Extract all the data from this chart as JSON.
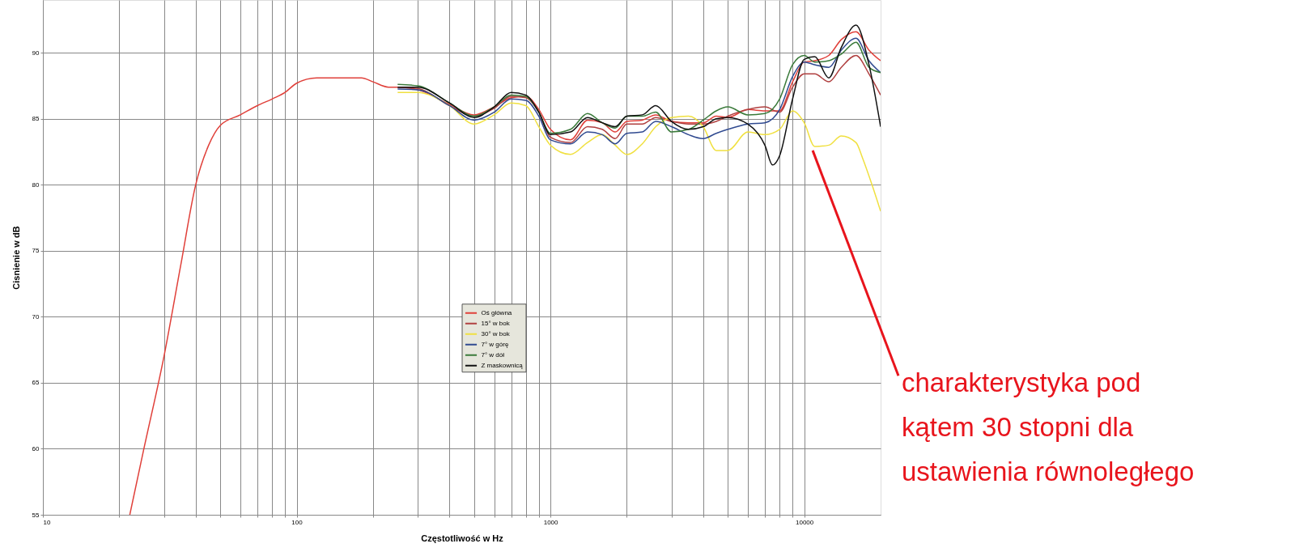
{
  "chart_data": {
    "type": "line",
    "xlabel": "Częstotliwość w Hz",
    "ylabel": "Cisnienie w dB",
    "log": "x",
    "grid": true,
    "legend": "center",
    "line_style": "solid",
    "marker": "none",
    "xlim": [
      10,
      20000
    ],
    "ylim": [
      55,
      94
    ],
    "xticks": [
      10,
      {
        "value": 20,
        "label": null
      },
      {
        "value": 30,
        "label": null
      },
      {
        "value": 40,
        "label": null
      },
      {
        "value": 50,
        "label": null
      },
      {
        "value": 60,
        "label": null
      },
      {
        "value": 70,
        "label": null
      },
      {
        "value": 80,
        "label": null
      },
      {
        "value": 90,
        "label": null
      },
      100,
      {
        "value": 200,
        "label": null
      },
      {
        "value": 300,
        "label": null
      },
      {
        "value": 400,
        "label": null
      },
      {
        "value": 500,
        "label": null
      },
      {
        "value": 600,
        "label": null
      },
      {
        "value": 700,
        "label": null
      },
      {
        "value": 800,
        "label": null
      },
      {
        "value": 900,
        "label": null
      },
      1000,
      {
        "value": 2000,
        "label": null
      },
      {
        "value": 3000,
        "label": null
      },
      {
        "value": 4000,
        "label": null
      },
      {
        "value": 5000,
        "label": null
      },
      {
        "value": 6000,
        "label": null
      },
      {
        "value": 7000,
        "label": null
      },
      {
        "value": 8000,
        "label": null
      },
      {
        "value": 9000,
        "label": null
      },
      10000
    ],
    "yticks": [
      55,
      60,
      65,
      70,
      75,
      80,
      85,
      90
    ],
    "series": [
      {
        "name": "Oś główna",
        "color": "#e0403a",
        "x": [
          22,
          25,
          30,
          35,
          40,
          45,
          50,
          60,
          70,
          80,
          90,
          100,
          120,
          150,
          180,
          200,
          230,
          250,
          300,
          400,
          500,
          600,
          700,
          800,
          900,
          1000,
          1200,
          1400,
          1600,
          1800,
          2000,
          2300,
          2600,
          3000,
          3500,
          4000,
          4500,
          5000,
          6000,
          7000,
          8000,
          9000,
          10000,
          11000,
          12500,
          14000,
          16000,
          18000,
          20000
        ],
        "values": [
          55,
          60,
          67,
          74,
          80,
          83,
          84.5,
          85.3,
          86,
          86.5,
          87,
          87.7,
          88.1,
          88.1,
          88.1,
          87.8,
          87.4,
          87.4,
          87.2,
          86.1,
          85.3,
          85.9,
          86.6,
          86.7,
          85.7,
          84.2,
          83.4,
          84.9,
          84.7,
          84,
          84.8,
          84.9,
          85.3,
          84.8,
          84.7,
          84.7,
          85.2,
          85.1,
          85.7,
          85.6,
          85.6,
          87.8,
          89.3,
          89.4,
          89.8,
          91,
          91.6,
          90.2,
          89.4
        ]
      },
      {
        "name": "15° w bok",
        "color": "#b04040",
        "x": [
          250,
          300,
          400,
          500,
          600,
          700,
          800,
          900,
          1000,
          1200,
          1400,
          1600,
          1800,
          2000,
          2300,
          2600,
          3000,
          3500,
          4000,
          4500,
          5000,
          6000,
          7000,
          8000,
          9000,
          10000,
          11000,
          12500,
          14000,
          16000,
          18000,
          20000
        ],
        "values": [
          87.4,
          87.3,
          86,
          85.2,
          85.8,
          86.7,
          86.6,
          85.5,
          83.6,
          83.2,
          84.4,
          84.2,
          83.5,
          84.6,
          84.6,
          85.1,
          84.8,
          84.6,
          84.6,
          84.8,
          85.2,
          85.7,
          85.9,
          85.5,
          87.4,
          88.4,
          88.4,
          87.8,
          88.9,
          89.8,
          88.4,
          86.8
        ]
      },
      {
        "name": "30° w bok",
        "color": "#f0e040",
        "x": [
          250,
          300,
          400,
          500,
          600,
          700,
          800,
          900,
          1000,
          1200,
          1400,
          1600,
          1800,
          2000,
          2300,
          2600,
          3000,
          3500,
          4000,
          4500,
          5000,
          6000,
          7000,
          8000,
          9000,
          10000,
          11000,
          12500,
          14000,
          16000,
          17000,
          18500,
          20000
        ],
        "values": [
          87,
          87,
          86,
          84.6,
          85.3,
          86.2,
          86,
          84.4,
          83,
          82.3,
          83.2,
          83.8,
          83,
          82.3,
          83.1,
          84.4,
          85.1,
          85.2,
          84.4,
          82.6,
          82.6,
          84,
          83.8,
          84.2,
          85.6,
          84.7,
          82.9,
          83,
          83.7,
          83.2,
          82,
          80,
          78
        ]
      },
      {
        "name": "7° w górę",
        "color": "#304a90",
        "x": [
          250,
          300,
          400,
          500,
          600,
          700,
          800,
          900,
          1000,
          1200,
          1400,
          1600,
          1800,
          2000,
          2300,
          2600,
          3000,
          3500,
          4000,
          4500,
          5000,
          6000,
          7000,
          8000,
          9000,
          10000,
          11000,
          12500,
          14000,
          16000,
          18000,
          20000
        ],
        "values": [
          87.25,
          87.2,
          86,
          84.9,
          85.5,
          86.5,
          86.4,
          85.2,
          83.4,
          83.1,
          84,
          83.8,
          83.1,
          83.9,
          84,
          84.8,
          84.4,
          83.8,
          83.5,
          83.9,
          84.2,
          84.6,
          84.7,
          85.7,
          88.2,
          89.3,
          89.1,
          88.9,
          90.2,
          91.1,
          89.4,
          88.5
        ]
      },
      {
        "name": "7° w dół",
        "color": "#3a7a3a",
        "x": [
          250,
          300,
          400,
          500,
          600,
          700,
          800,
          900,
          1000,
          1200,
          1400,
          1600,
          1800,
          2000,
          2300,
          2600,
          3000,
          3500,
          4000,
          4500,
          5000,
          6000,
          7000,
          8000,
          9000,
          10000,
          11000,
          12500,
          14000,
          16000,
          18000,
          20000
        ],
        "values": [
          87.6,
          87.5,
          86.2,
          85.2,
          85.9,
          86.8,
          86.7,
          85.5,
          83.9,
          84.2,
          85.4,
          84.7,
          84.3,
          85.2,
          85.2,
          85.5,
          84,
          84.2,
          84.9,
          85.6,
          85.9,
          85.3,
          85.4,
          86.5,
          89.1,
          89.8,
          89.3,
          89.4,
          89.9,
          90.8,
          88.9,
          88.5
        ]
      },
      {
        "name": "Z maskownicą",
        "color": "#111111",
        "x": [
          250,
          300,
          400,
          500,
          600,
          700,
          800,
          900,
          1000,
          1200,
          1400,
          1600,
          1800,
          2000,
          2300,
          2600,
          3000,
          3500,
          4000,
          4500,
          5000,
          6000,
          7000,
          7500,
          8000,
          9000,
          10000,
          11000,
          12500,
          14000,
          16000,
          18000,
          20000
        ],
        "values": [
          87.4,
          87.4,
          86.2,
          85.1,
          85.9,
          87,
          86.8,
          85.5,
          83.8,
          84,
          85.1,
          84.7,
          84.4,
          85.2,
          85.3,
          86,
          84.8,
          84.2,
          84.4,
          85,
          85.1,
          84.6,
          83,
          81.5,
          82.2,
          86.5,
          89.5,
          89.7,
          88.1,
          90.4,
          92.1,
          89.1,
          84.4
        ]
      }
    ],
    "annotations": [
      {
        "text": "charakterystyka pod\nkątem 30 stopni dla\nustawienia równoległego",
        "x": 10800,
        "y": 82.6
      }
    ]
  }
}
